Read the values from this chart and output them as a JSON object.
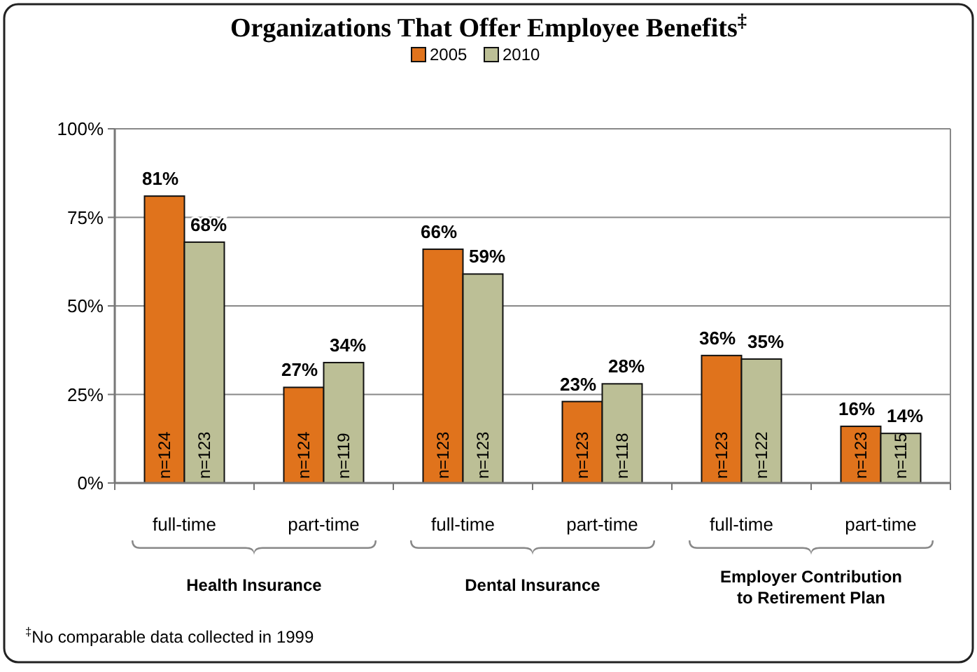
{
  "chart_data": {
    "type": "bar",
    "title": "Organizations That Offer Employee Benefits$^{‡}$",
    "categories": [
      "full-time",
      "part-time",
      "full-time",
      "part-time",
      "full-time",
      "part-time"
    ],
    "series": [
      {
        "name": "2005",
        "color": "#e0731c",
        "values": [
          81,
          27,
          66,
          23,
          36,
          16
        ],
        "value_labels": [
          "81%",
          "27%",
          "66%",
          "23%",
          "36%",
          "16%"
        ]
      },
      {
        "name": "2010",
        "color": "#bcbf96",
        "values": [
          68,
          34,
          59,
          28,
          35,
          14
        ],
        "value_labels": [
          "68%",
          "34%",
          "59%",
          "28%",
          "35%",
          "14%"
        ]
      }
    ],
    "ylim": [
      0,
      100
    ],
    "yticks": [
      {
        "value": 0,
        "label": "0%"
      },
      {
        "value": 25,
        "label": "25%"
      },
      {
        "value": 50,
        "label": "50%"
      },
      {
        "value": 75,
        "label": "75%"
      },
      {
        "value": 100,
        "label": "100%"
      }
    ],
    "grid": "y",
    "legend": "top",
    "annotations": [
      "Health Insurance",
      "Dental Insurance",
      "Employer Contribution to Retirement Plan",
      "$^{‡}$No comparable data collected in 1999",
      "n=124",
      "n=123",
      "n=124",
      "n=119",
      "n=123",
      "n=123",
      "n=123",
      "n=118",
      "n=123",
      "n=122",
      "n=123",
      "n=115"
    ]
  }
}
